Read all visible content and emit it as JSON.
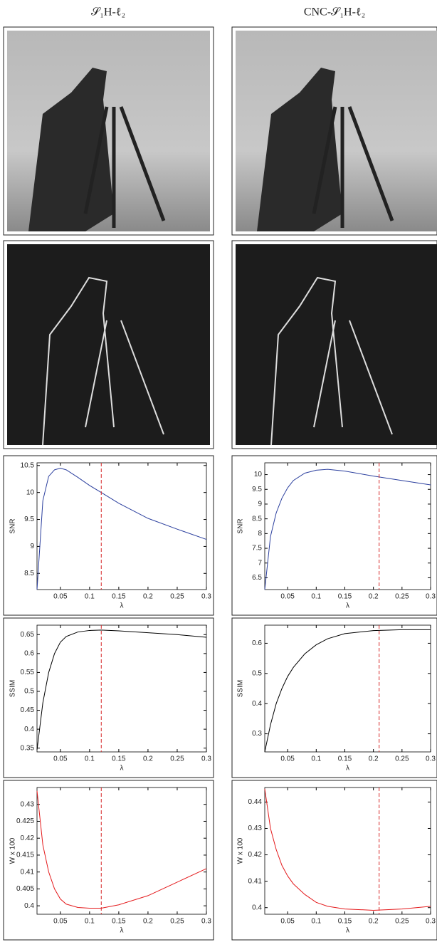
{
  "column_titles": [
    "𝒮₁H-ℓ₂",
    "CNC-𝒮₁H-ℓ₂"
  ],
  "chart_data": [
    {
      "type": "line",
      "ylabel": "SNR",
      "xlabel": "λ",
      "x": [
        0.01,
        0.02,
        0.03,
        0.04,
        0.05,
        0.06,
        0.08,
        0.1,
        0.12,
        0.15,
        0.2,
        0.25,
        0.3
      ],
      "series": [
        {
          "color": "#2b3f9e",
          "values": [
            8.2,
            9.85,
            10.3,
            10.42,
            10.45,
            10.42,
            10.28,
            10.13,
            10.0,
            9.8,
            9.52,
            9.32,
            9.13
          ]
        }
      ],
      "xlim": [
        0.01,
        0.3
      ],
      "ylim": [
        8.2,
        10.55
      ],
      "xticks": [
        0.05,
        0.1,
        0.15,
        0.2,
        0.25,
        0.3
      ],
      "yticks": [
        8.5,
        9,
        9.5,
        10,
        10.5
      ],
      "vline": {
        "x": 0.12,
        "color": "#d62728"
      }
    },
    {
      "type": "line",
      "ylabel": "SNR",
      "xlabel": "λ",
      "x": [
        0.01,
        0.02,
        0.03,
        0.04,
        0.05,
        0.06,
        0.08,
        0.1,
        0.12,
        0.15,
        0.2,
        0.25,
        0.3
      ],
      "series": [
        {
          "color": "#2b3f9e",
          "values": [
            6.1,
            7.9,
            8.7,
            9.2,
            9.55,
            9.8,
            10.05,
            10.15,
            10.18,
            10.12,
            9.95,
            9.8,
            9.65
          ]
        }
      ],
      "xlim": [
        0.01,
        0.3
      ],
      "ylim": [
        6.1,
        10.4
      ],
      "xticks": [
        0.05,
        0.1,
        0.15,
        0.2,
        0.25,
        0.3
      ],
      "yticks": [
        6.5,
        7,
        7.5,
        8,
        8.5,
        9,
        9.5,
        10
      ],
      "vline": {
        "x": 0.21,
        "color": "#d62728"
      }
    },
    {
      "type": "line",
      "ylabel": "SSIM",
      "xlabel": "λ",
      "x": [
        0.01,
        0.02,
        0.03,
        0.04,
        0.05,
        0.06,
        0.08,
        0.1,
        0.12,
        0.15,
        0.2,
        0.25,
        0.3
      ],
      "series": [
        {
          "color": "#000000",
          "values": [
            0.345,
            0.47,
            0.55,
            0.6,
            0.63,
            0.645,
            0.657,
            0.661,
            0.662,
            0.66,
            0.655,
            0.65,
            0.643
          ]
        }
      ],
      "xlim": [
        0.01,
        0.3
      ],
      "ylim": [
        0.34,
        0.675
      ],
      "xticks": [
        0.05,
        0.1,
        0.15,
        0.2,
        0.25,
        0.3
      ],
      "yticks": [
        0.35,
        0.4,
        0.45,
        0.5,
        0.55,
        0.6,
        0.65
      ],
      "vline": {
        "x": 0.12,
        "color": "#d62728"
      }
    },
    {
      "type": "line",
      "ylabel": "SSIM",
      "xlabel": "λ",
      "x": [
        0.01,
        0.02,
        0.03,
        0.04,
        0.05,
        0.06,
        0.08,
        0.1,
        0.12,
        0.15,
        0.2,
        0.25,
        0.3
      ],
      "series": [
        {
          "color": "#000000",
          "values": [
            0.24,
            0.33,
            0.4,
            0.45,
            0.49,
            0.52,
            0.565,
            0.595,
            0.615,
            0.632,
            0.642,
            0.645,
            0.645
          ]
        }
      ],
      "xlim": [
        0.01,
        0.3
      ],
      "ylim": [
        0.24,
        0.66
      ],
      "xticks": [
        0.05,
        0.1,
        0.15,
        0.2,
        0.25,
        0.3
      ],
      "yticks": [
        0.3,
        0.4,
        0.5,
        0.6
      ],
      "vline": {
        "x": 0.21,
        "color": "#d62728"
      }
    },
    {
      "type": "line",
      "ylabel": "W x 100",
      "xlabel": "λ",
      "x": [
        0.01,
        0.02,
        0.03,
        0.04,
        0.05,
        0.06,
        0.08,
        0.1,
        0.12,
        0.15,
        0.2,
        0.25,
        0.3
      ],
      "series": [
        {
          "color": "#e41a1c",
          "values": [
            0.434,
            0.418,
            0.41,
            0.405,
            0.402,
            0.4005,
            0.3995,
            0.3993,
            0.3993,
            0.4003,
            0.403,
            0.407,
            0.411
          ]
        }
      ],
      "xlim": [
        0.01,
        0.3
      ],
      "ylim": [
        0.3975,
        0.435
      ],
      "xticks": [
        0.05,
        0.1,
        0.15,
        0.2,
        0.25,
        0.3
      ],
      "yticks": [
        0.4,
        0.405,
        0.41,
        0.415,
        0.42,
        0.425,
        0.43
      ],
      "vline": {
        "x": 0.12,
        "color": "#d62728"
      }
    },
    {
      "type": "line",
      "ylabel": "W x 100",
      "xlabel": "λ",
      "x": [
        0.01,
        0.02,
        0.03,
        0.04,
        0.05,
        0.06,
        0.08,
        0.1,
        0.12,
        0.15,
        0.2,
        0.25,
        0.3
      ],
      "series": [
        {
          "color": "#e41a1c",
          "values": [
            0.445,
            0.43,
            0.422,
            0.416,
            0.412,
            0.409,
            0.405,
            0.402,
            0.4005,
            0.3995,
            0.399,
            0.3995,
            0.4005
          ]
        }
      ],
      "xlim": [
        0.01,
        0.3
      ],
      "ylim": [
        0.3975,
        0.4455
      ],
      "xticks": [
        0.05,
        0.1,
        0.15,
        0.2,
        0.25,
        0.3
      ],
      "yticks": [
        0.4,
        0.41,
        0.42,
        0.43,
        0.44
      ],
      "vline": {
        "x": 0.21,
        "color": "#d62728"
      }
    }
  ]
}
